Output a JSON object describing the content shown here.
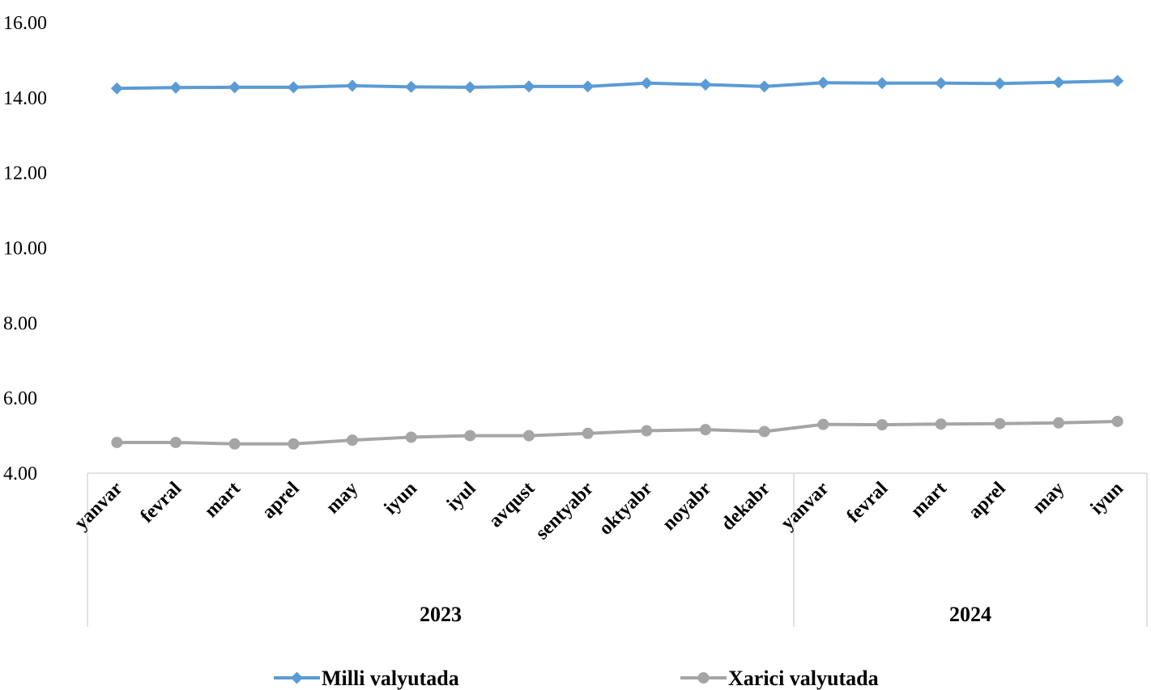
{
  "chart_data": {
    "type": "line",
    "categories": [
      "yanvar",
      "fevral",
      "mart",
      "aprel",
      "may",
      "iyun",
      "iyul",
      "avqust",
      "sentyabr",
      "oktyabr",
      "noyabr",
      "dekabr",
      "yanvar",
      "fevral",
      "mart",
      "aprel",
      "may",
      "iyun"
    ],
    "groups": [
      {
        "label": "2023",
        "count": 12
      },
      {
        "label": "2024",
        "count": 6
      }
    ],
    "series": [
      {
        "name": "Milli valyutada",
        "color": "#5B9BD5",
        "marker": "diamond",
        "values": [
          14.25,
          14.27,
          14.28,
          14.28,
          14.32,
          14.29,
          14.28,
          14.3,
          14.3,
          14.39,
          14.35,
          14.3,
          14.4,
          14.39,
          14.39,
          14.38,
          14.41,
          14.45
        ]
      },
      {
        "name": "Xarici valyutada",
        "color": "#A5A5A5",
        "marker": "circle",
        "values": [
          4.82,
          4.82,
          4.78,
          4.78,
          4.88,
          4.96,
          5.0,
          5.0,
          5.06,
          5.13,
          5.16,
          5.11,
          5.3,
          5.29,
          5.31,
          5.32,
          5.34,
          5.38
        ]
      }
    ],
    "yticks": [
      "4.00",
      "6.00",
      "8.00",
      "10.00",
      "12.00",
      "14.00",
      "16.00"
    ],
    "ylim": [
      4,
      16
    ],
    "title": "",
    "xlabel": "",
    "ylabel": "",
    "grid": false,
    "legend_position": "bottom"
  }
}
